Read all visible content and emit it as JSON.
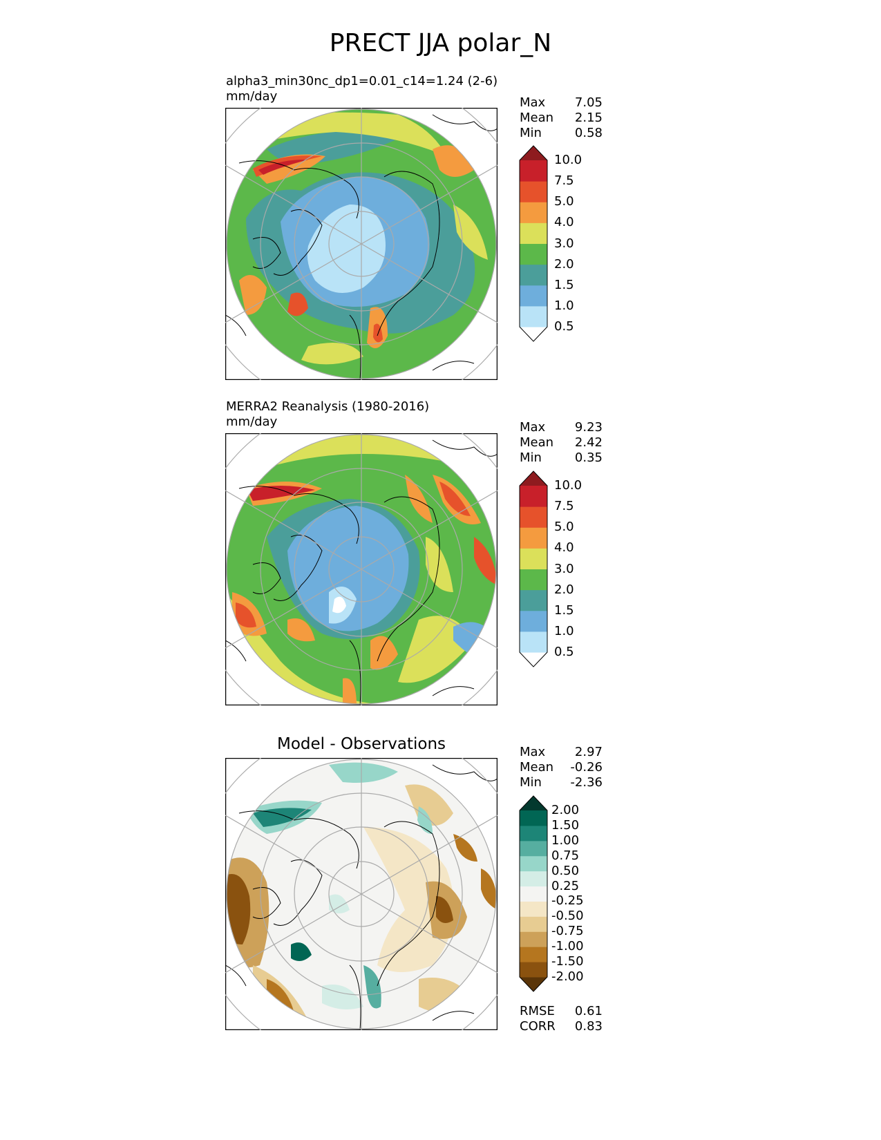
{
  "figure_title": "PRECT JJA polar_N",
  "panels": [
    {
      "title": "alpha3_min30nc_dp1=0.01_c14=1.24 (2-6)",
      "units": "mm/day",
      "stats": [
        {
          "label": "Max",
          "value": "7.05"
        },
        {
          "label": "Mean",
          "value": "2.15"
        },
        {
          "label": "Min",
          "value": "0.58"
        }
      ]
    },
    {
      "title": "MERRA2 Reanalysis (1980-2016)",
      "units": "mm/day",
      "stats": [
        {
          "label": "Max",
          "value": "9.23"
        },
        {
          "label": "Mean",
          "value": "2.42"
        },
        {
          "label": "Min",
          "value": "0.35"
        }
      ]
    },
    {
      "title": "Model - Observations",
      "units": "",
      "stats": [
        {
          "label": "Max",
          "value": "2.97"
        },
        {
          "label": "Mean",
          "value": "-0.26"
        },
        {
          "label": "Min",
          "value": "-2.36"
        }
      ],
      "metrics": [
        {
          "label": "RMSE",
          "value": "0.61"
        },
        {
          "label": "CORR",
          "value": "0.83"
        }
      ]
    }
  ],
  "precip_colorbar": {
    "ticks": [
      "10.0",
      "7.5",
      "5.0",
      "4.0",
      "3.0",
      "2.0",
      "1.5",
      "1.0",
      "0.5"
    ],
    "colors": [
      "#ffffff",
      "#b9e3f7",
      "#6eaedc",
      "#4b9e9a",
      "#5cb84a",
      "#dbe05a",
      "#f49b3f",
      "#e6522b",
      "#c8202a",
      "#8e1b1f"
    ]
  },
  "diff_colorbar": {
    "ticks": [
      "2.00",
      "1.50",
      "1.00",
      "0.75",
      "0.50",
      "0.25",
      "-0.25",
      "-0.50",
      "-0.75",
      "-1.00",
      "-1.50",
      "-2.00"
    ],
    "colors": [
      "#5a3508",
      "#8a520f",
      "#b5761f",
      "#cda159",
      "#e7cc92",
      "#f4e6c6",
      "#f4f4f2",
      "#d4ede6",
      "#97d6c9",
      "#56aea0",
      "#1d8577",
      "#016654",
      "#03392e"
    ]
  }
}
